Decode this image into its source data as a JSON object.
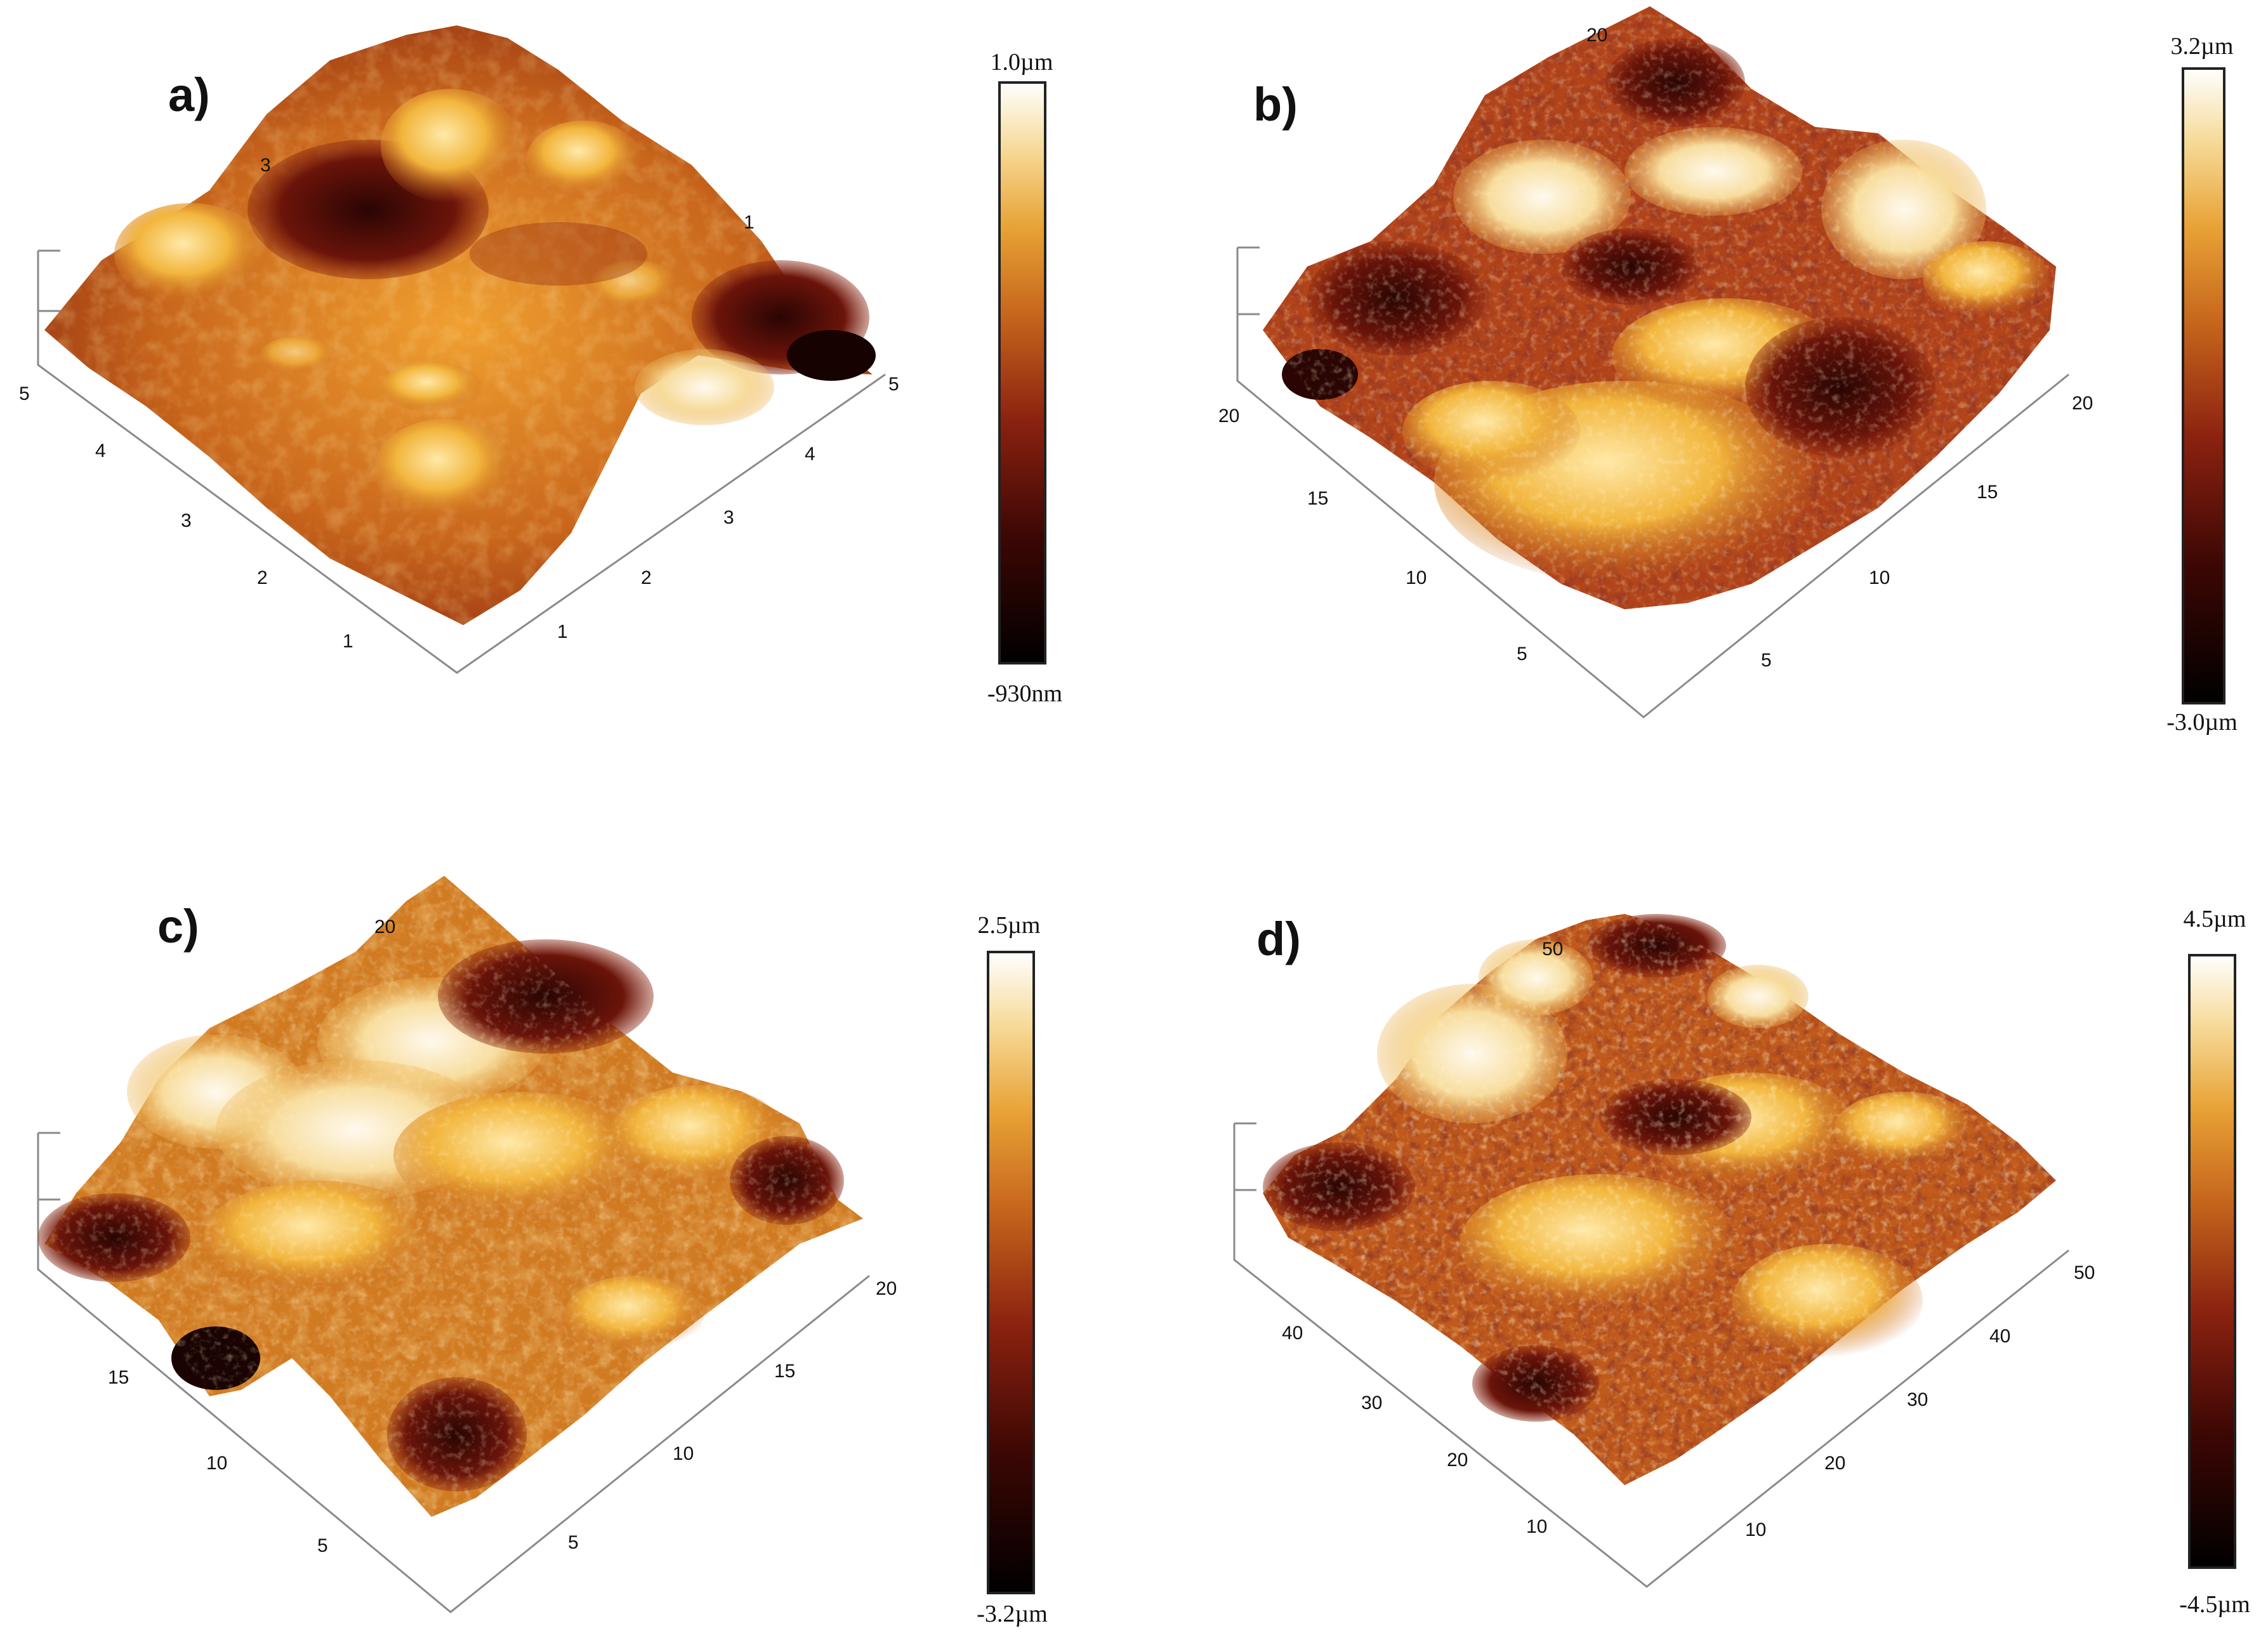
{
  "colors": {
    "afm_hot_scale": [
      "#000000",
      "#5a0b06",
      "#9b2d10",
      "#c8661a",
      "#e49a2a",
      "#f4c86a",
      "#fff6ea"
    ]
  },
  "panels": [
    {
      "label": "a)",
      "colorbar": {
        "top": "1.0µm",
        "bottom": "-930nm"
      },
      "ticks": {
        "left_axis": [
          "5",
          "4",
          "3",
          "2",
          "1"
        ],
        "right_axis": [
          "1",
          "2",
          "3",
          "4",
          "5"
        ],
        "back": [
          "3",
          "1"
        ]
      }
    },
    {
      "label": "b)",
      "colorbar": {
        "top": "3.2µm",
        "bottom": "-3.0µm"
      },
      "ticks": {
        "left_axis": [
          "20",
          "15",
          "10",
          "5"
        ],
        "right_axis": [
          "5",
          "10",
          "15",
          "20"
        ],
        "back": [
          "20"
        ]
      }
    },
    {
      "label": "c)",
      "colorbar": {
        "top": "2.5µm",
        "bottom": "-3.2µm"
      },
      "ticks": {
        "left_axis": [
          "15",
          "10",
          "5"
        ],
        "right_axis": [
          "5",
          "10",
          "15",
          "20"
        ],
        "back": [
          "20"
        ]
      }
    },
    {
      "label": "d)",
      "colorbar": {
        "top": "4.5µm",
        "bottom": "-4.5µm"
      },
      "ticks": {
        "left_axis": [
          "40",
          "30",
          "20",
          "10"
        ],
        "right_axis": [
          "10",
          "20",
          "30",
          "40",
          "50"
        ],
        "back": [
          "50"
        ]
      }
    }
  ]
}
